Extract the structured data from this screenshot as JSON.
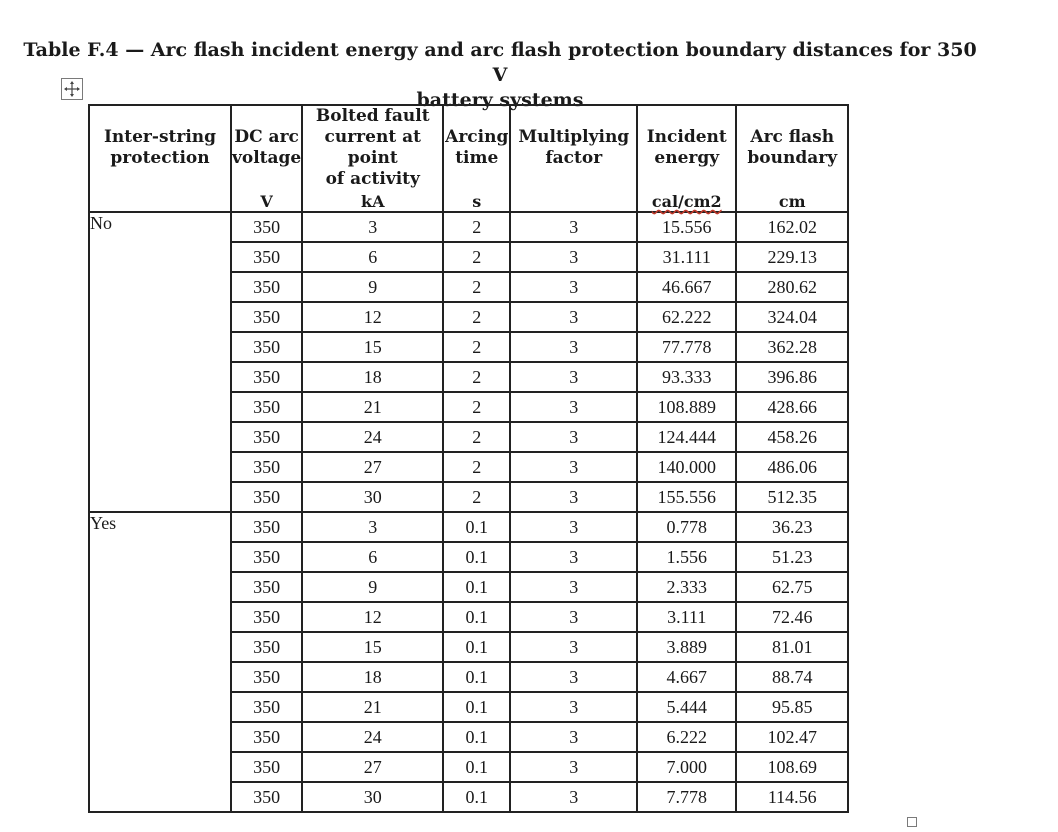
{
  "caption": {
    "line1": "Table F.4 — Arc flash incident energy and arc flash protection boundary distances for 350 V",
    "line2": "battery systems"
  },
  "icons": {
    "move_handle": "four-way-arrow-icon",
    "resize_handle": "resize-square-icon"
  },
  "table": {
    "headers": [
      [
        "Inter-string",
        "protection"
      ],
      [
        "DC arc",
        "voltage"
      ],
      [
        "Bolted fault",
        "current at point",
        "of activity"
      ],
      [
        "Arcing",
        "time"
      ],
      [
        "Multiplying",
        "factor"
      ],
      [
        "Incident",
        "energy"
      ],
      [
        "Arc flash",
        "boundary"
      ]
    ],
    "units": [
      "",
      "V",
      "kA",
      "s",
      "",
      "cal/cm2",
      "cm"
    ],
    "groups": [
      {
        "label": "No",
        "rows": [
          [
            "350",
            "3",
            "2",
            "3",
            "15.556",
            "162.02"
          ],
          [
            "350",
            "6",
            "2",
            "3",
            "31.111",
            "229.13"
          ],
          [
            "350",
            "9",
            "2",
            "3",
            "46.667",
            "280.62"
          ],
          [
            "350",
            "12",
            "2",
            "3",
            "62.222",
            "324.04"
          ],
          [
            "350",
            "15",
            "2",
            "3",
            "77.778",
            "362.28"
          ],
          [
            "350",
            "18",
            "2",
            "3",
            "93.333",
            "396.86"
          ],
          [
            "350",
            "21",
            "2",
            "3",
            "108.889",
            "428.66"
          ],
          [
            "350",
            "24",
            "2",
            "3",
            "124.444",
            "458.26"
          ],
          [
            "350",
            "27",
            "2",
            "3",
            "140.000",
            "486.06"
          ],
          [
            "350",
            "30",
            "2",
            "3",
            "155.556",
            "512.35"
          ]
        ]
      },
      {
        "label": "Yes",
        "rows": [
          [
            "350",
            "3",
            "0.1",
            "3",
            "0.778",
            "36.23"
          ],
          [
            "350",
            "6",
            "0.1",
            "3",
            "1.556",
            "51.23"
          ],
          [
            "350",
            "9",
            "0.1",
            "3",
            "2.333",
            "62.75"
          ],
          [
            "350",
            "12",
            "0.1",
            "3",
            "3.111",
            "72.46"
          ],
          [
            "350",
            "15",
            "0.1",
            "3",
            "3.889",
            "81.01"
          ],
          [
            "350",
            "18",
            "0.1",
            "3",
            "4.667",
            "88.74"
          ],
          [
            "350",
            "21",
            "0.1",
            "3",
            "5.444",
            "95.85"
          ],
          [
            "350",
            "24",
            "0.1",
            "3",
            "6.222",
            "102.47"
          ],
          [
            "350",
            "27",
            "0.1",
            "3",
            "7.000",
            "108.69"
          ],
          [
            "350",
            "30",
            "0.1",
            "3",
            "7.778",
            "114.56"
          ]
        ]
      }
    ]
  }
}
